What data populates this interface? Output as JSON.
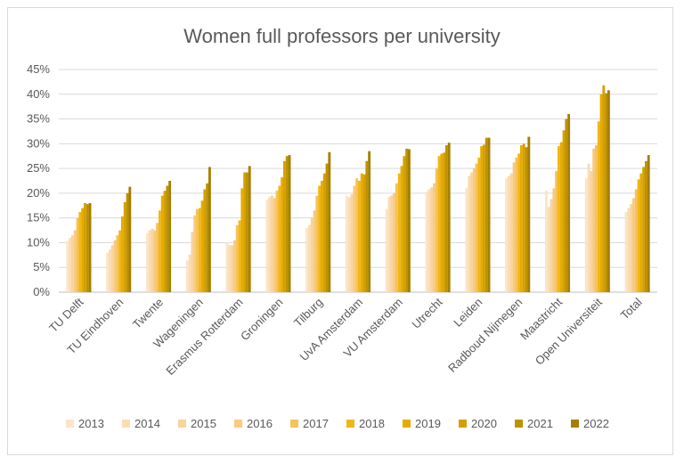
{
  "chart_data": {
    "type": "bar",
    "title": "Women full professors per university",
    "xlabel": "",
    "ylabel": "",
    "ylim": [
      0,
      0.45
    ],
    "yticks": [
      "0%",
      "5%",
      "10%",
      "15%",
      "20%",
      "25%",
      "30%",
      "35%",
      "40%",
      "45%"
    ],
    "ytick_values": [
      0,
      0.05,
      0.1,
      0.15,
      0.2,
      0.25,
      0.3,
      0.35,
      0.4,
      0.45
    ],
    "grid": true,
    "legend_position": "bottom",
    "categories": [
      "TU Delft",
      "TU Eindhoven",
      "Twente",
      "Wageningen",
      "Erasmus Rotterdam",
      "Groningen",
      "Tilburg",
      "UvA Amsterdam",
      "VU Amsterdam",
      "Utrecht",
      "Leiden",
      "Radboud Nijmegen",
      "Maastricht",
      "Open Universiteit",
      "Total"
    ],
    "series": [
      {
        "name": "2013",
        "color": "#fbe5c8",
        "values": [
          0.104,
          0.08,
          0.12,
          0.064,
          0.1,
          0.187,
          0.13,
          0.195,
          0.168,
          0.203,
          0.21,
          0.23,
          0.205,
          0.23,
          0.162
        ]
      },
      {
        "name": "2014",
        "color": "#fbdcb4",
        "values": [
          0.11,
          0.087,
          0.125,
          0.076,
          0.095,
          0.192,
          0.136,
          0.192,
          0.193,
          0.208,
          0.235,
          0.235,
          0.172,
          0.26,
          0.17
        ]
      },
      {
        "name": "2015",
        "color": "#f9d49e",
        "values": [
          0.115,
          0.095,
          0.128,
          0.122,
          0.095,
          0.195,
          0.15,
          0.198,
          0.196,
          0.212,
          0.242,
          0.24,
          0.188,
          0.245,
          0.178
        ]
      },
      {
        "name": "2016",
        "color": "#f7cb80",
        "values": [
          0.125,
          0.105,
          0.125,
          0.155,
          0.105,
          0.19,
          0.165,
          0.215,
          0.2,
          0.22,
          0.25,
          0.262,
          0.21,
          0.29,
          0.19
        ]
      },
      {
        "name": "2017",
        "color": "#f6c25a",
        "values": [
          0.15,
          0.115,
          0.14,
          0.168,
          0.135,
          0.205,
          0.195,
          0.23,
          0.22,
          0.25,
          0.26,
          0.272,
          0.245,
          0.297,
          0.208
        ]
      },
      {
        "name": "2018",
        "color": "#f1b717",
        "values": [
          0.162,
          0.125,
          0.165,
          0.17,
          0.145,
          0.215,
          0.215,
          0.225,
          0.24,
          0.275,
          0.272,
          0.28,
          0.295,
          0.345,
          0.228
        ]
      },
      {
        "name": "2019",
        "color": "#e6ab00",
        "values": [
          0.17,
          0.153,
          0.195,
          0.185,
          0.21,
          0.232,
          0.225,
          0.24,
          0.255,
          0.28,
          0.295,
          0.297,
          0.303,
          0.4,
          0.24
        ]
      },
      {
        "name": "2020",
        "color": "#d4a000",
        "values": [
          0.18,
          0.182,
          0.205,
          0.208,
          0.242,
          0.265,
          0.24,
          0.238,
          0.275,
          0.282,
          0.298,
          0.3,
          0.327,
          0.418,
          0.253
        ]
      },
      {
        "name": "2021",
        "color": "#bd9200",
        "values": [
          0.178,
          0.2,
          0.215,
          0.22,
          0.242,
          0.275,
          0.26,
          0.265,
          0.29,
          0.297,
          0.312,
          0.293,
          0.35,
          0.402,
          0.265
        ]
      },
      {
        "name": "2022",
        "color": "#a67f00",
        "values": [
          0.18,
          0.213,
          0.225,
          0.253,
          0.255,
          0.277,
          0.283,
          0.285,
          0.289,
          0.302,
          0.312,
          0.314,
          0.36,
          0.408,
          0.277
        ]
      }
    ]
  }
}
